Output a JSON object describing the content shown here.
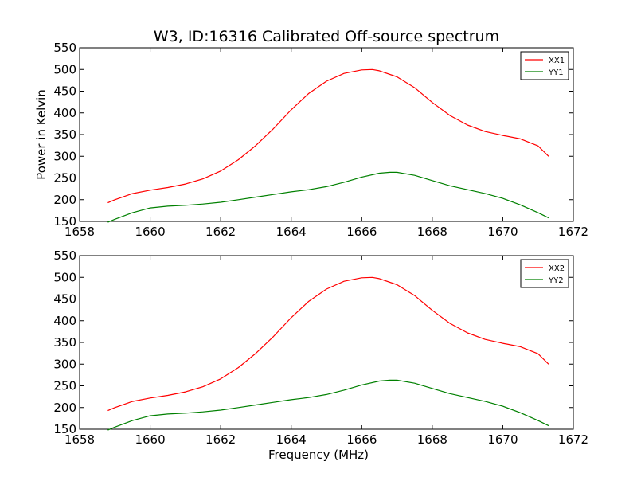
{
  "figure": {
    "title": "W3, ID:16316 Calibrated Off-source spectrum"
  },
  "chart_data": [
    {
      "type": "line",
      "title": "W3, ID:16316 Calibrated Off-source spectrum",
      "xlabel": "",
      "ylabel": "Power in Kelvin",
      "xlim": [
        1658,
        1672
      ],
      "ylim": [
        150,
        550
      ],
      "xticks": [
        1658,
        1660,
        1662,
        1664,
        1666,
        1668,
        1670,
        1672
      ],
      "yticks": [
        150,
        200,
        250,
        300,
        350,
        400,
        450,
        500,
        550
      ],
      "grid": false,
      "legend_position": "top-right",
      "series": [
        {
          "name": "XX1",
          "color": "#ff0000",
          "x": [
            1658.8,
            1659.0,
            1659.5,
            1660.0,
            1660.5,
            1661.0,
            1661.5,
            1662.0,
            1662.5,
            1663.0,
            1663.5,
            1664.0,
            1664.5,
            1665.0,
            1665.5,
            1666.0,
            1666.3,
            1666.5,
            1667.0,
            1667.5,
            1668.0,
            1668.5,
            1669.0,
            1669.5,
            1670.0,
            1670.5,
            1671.0,
            1671.3
          ],
          "y": [
            193,
            200,
            214,
            222,
            228,
            236,
            248,
            266,
            292,
            325,
            364,
            407,
            445,
            473,
            491,
            499,
            500,
            497,
            483,
            458,
            424,
            394,
            372,
            357,
            348,
            340,
            324,
            300
          ]
        },
        {
          "name": "YY1",
          "color": "#008000",
          "x": [
            1658.8,
            1659.0,
            1659.5,
            1660.0,
            1660.5,
            1661.0,
            1661.5,
            1662.0,
            1662.5,
            1663.0,
            1663.5,
            1664.0,
            1664.5,
            1665.0,
            1665.5,
            1666.0,
            1666.5,
            1666.8,
            1667.0,
            1667.5,
            1668.0,
            1668.5,
            1669.0,
            1669.5,
            1670.0,
            1670.5,
            1671.0,
            1671.3
          ],
          "y": [
            148,
            155,
            170,
            181,
            185,
            187,
            190,
            194,
            200,
            206,
            212,
            218,
            223,
            230,
            240,
            252,
            261,
            263,
            263,
            256,
            244,
            232,
            223,
            214,
            203,
            188,
            170,
            158
          ]
        }
      ]
    },
    {
      "type": "line",
      "title": "",
      "xlabel": "Frequency (MHz)",
      "ylabel": "",
      "xlim": [
        1658,
        1672
      ],
      "ylim": [
        150,
        550
      ],
      "xticks": [
        1658,
        1660,
        1662,
        1664,
        1666,
        1668,
        1670,
        1672
      ],
      "yticks": [
        150,
        200,
        250,
        300,
        350,
        400,
        450,
        500,
        550
      ],
      "grid": false,
      "legend_position": "top-right",
      "series": [
        {
          "name": "XX2",
          "color": "#ff0000",
          "x": [
            1658.8,
            1659.0,
            1659.5,
            1660.0,
            1660.5,
            1661.0,
            1661.5,
            1662.0,
            1662.5,
            1663.0,
            1663.5,
            1664.0,
            1664.5,
            1665.0,
            1665.5,
            1666.0,
            1666.3,
            1666.5,
            1667.0,
            1667.5,
            1668.0,
            1668.5,
            1669.0,
            1669.5,
            1670.0,
            1670.5,
            1671.0,
            1671.3
          ],
          "y": [
            193,
            200,
            214,
            222,
            228,
            236,
            248,
            266,
            292,
            325,
            364,
            407,
            445,
            473,
            491,
            499,
            500,
            497,
            483,
            458,
            424,
            394,
            372,
            357,
            348,
            340,
            324,
            300
          ]
        },
        {
          "name": "YY2",
          "color": "#008000",
          "x": [
            1658.8,
            1659.0,
            1659.5,
            1660.0,
            1660.5,
            1661.0,
            1661.5,
            1662.0,
            1662.5,
            1663.0,
            1663.5,
            1664.0,
            1664.5,
            1665.0,
            1665.5,
            1666.0,
            1666.5,
            1666.8,
            1667.0,
            1667.5,
            1668.0,
            1668.5,
            1669.0,
            1669.5,
            1670.0,
            1670.5,
            1671.0,
            1671.3
          ],
          "y": [
            148,
            155,
            170,
            181,
            185,
            187,
            190,
            194,
            200,
            206,
            212,
            218,
            223,
            230,
            240,
            252,
            261,
            263,
            263,
            256,
            244,
            232,
            223,
            214,
            203,
            188,
            170,
            158
          ]
        }
      ]
    }
  ]
}
